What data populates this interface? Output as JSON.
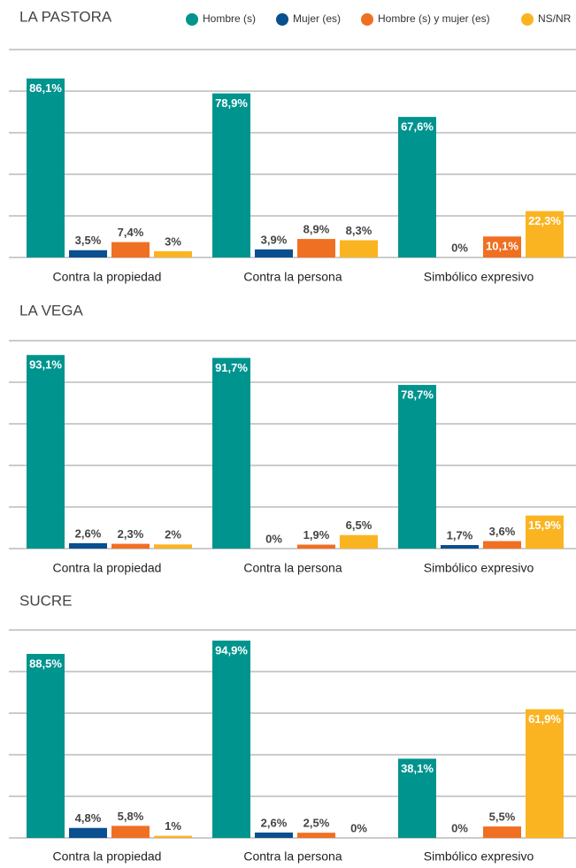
{
  "chart_data": [
    {
      "type": "bar",
      "title": "LA PASTORA",
      "categories": [
        "Contra la propiedad",
        "Contra la persona",
        "Simbólico expresivo"
      ],
      "ylim": [
        0,
        100
      ],
      "yticks": [
        0,
        20,
        40,
        60,
        80,
        100
      ],
      "grid": true,
      "legend": "top",
      "series": [
        {
          "name": "Hombre (s)",
          "color": "#00948f",
          "values": [
            86.1,
            78.9,
            67.6
          ],
          "value_labels": [
            "86,1%",
            "78,9%",
            "67,6%"
          ]
        },
        {
          "name": "Mujer (es)",
          "color": "#0a4f8f",
          "values": [
            3.5,
            3.9,
            0
          ],
          "value_labels": [
            "3,5%",
            "3,9%",
            "0%"
          ]
        },
        {
          "name": "Hombre (s) y mujer (es)",
          "color": "#f07023",
          "values": [
            7.4,
            8.9,
            10.1
          ],
          "value_labels": [
            "7,4%",
            "8,9%",
            "10,1%"
          ]
        },
        {
          "name": "NS/NR",
          "color": "#fbb421",
          "values": [
            3,
            8.3,
            22.3
          ],
          "value_labels": [
            "3%",
            "8,3%",
            "22,3%"
          ]
        }
      ]
    },
    {
      "type": "bar",
      "title": "LA VEGA",
      "categories": [
        "Contra la propiedad",
        "Contra la persona",
        "Simbólico expresivo"
      ],
      "ylim": [
        0,
        100
      ],
      "yticks": [
        0,
        20,
        40,
        60,
        80,
        100
      ],
      "grid": true,
      "series": [
        {
          "name": "Hombre (s)",
          "color": "#00948f",
          "values": [
            93.1,
            91.7,
            78.7
          ],
          "value_labels": [
            "93,1%",
            "91,7%",
            "78,7%"
          ]
        },
        {
          "name": "Mujer (es)",
          "color": "#0a4f8f",
          "values": [
            2.6,
            0,
            1.7
          ],
          "value_labels": [
            "2,6%",
            "0%",
            "1,7%"
          ]
        },
        {
          "name": "Hombre (s) y mujer (es)",
          "color": "#f07023",
          "values": [
            2.3,
            1.9,
            3.6
          ],
          "value_labels": [
            "2,3%",
            "1,9%",
            "3,6%"
          ]
        },
        {
          "name": "NS/NR",
          "color": "#fbb421",
          "values": [
            2,
            6.5,
            15.9
          ],
          "value_labels": [
            "2%",
            "6,5%",
            "15,9%"
          ]
        }
      ]
    },
    {
      "type": "bar",
      "title": "SUCRE",
      "categories": [
        "Contra la propiedad",
        "Contra la persona",
        "Simbólico expresivo"
      ],
      "ylim": [
        0,
        100
      ],
      "yticks": [
        0,
        20,
        40,
        60,
        80,
        100
      ],
      "grid": true,
      "series": [
        {
          "name": "Hombre (s)",
          "color": "#00948f",
          "values": [
            88.5,
            94.9,
            38.1
          ],
          "value_labels": [
            "88,5%",
            "94,9%",
            "38,1%"
          ]
        },
        {
          "name": "Mujer (es)",
          "color": "#0a4f8f",
          "values": [
            4.8,
            2.6,
            0
          ],
          "value_labels": [
            "4,8%",
            "2,6%",
            "0%"
          ]
        },
        {
          "name": "Hombre (s) y mujer (es)",
          "color": "#f07023",
          "values": [
            5.8,
            2.5,
            5.5
          ],
          "value_labels": [
            "5,8%",
            "2,5%",
            "5,5%"
          ]
        },
        {
          "name": "NS/NR",
          "color": "#fbb421",
          "values": [
            1,
            0,
            61.9
          ],
          "value_labels": [
            "1%",
            "0%",
            "61,9%"
          ]
        }
      ]
    }
  ]
}
